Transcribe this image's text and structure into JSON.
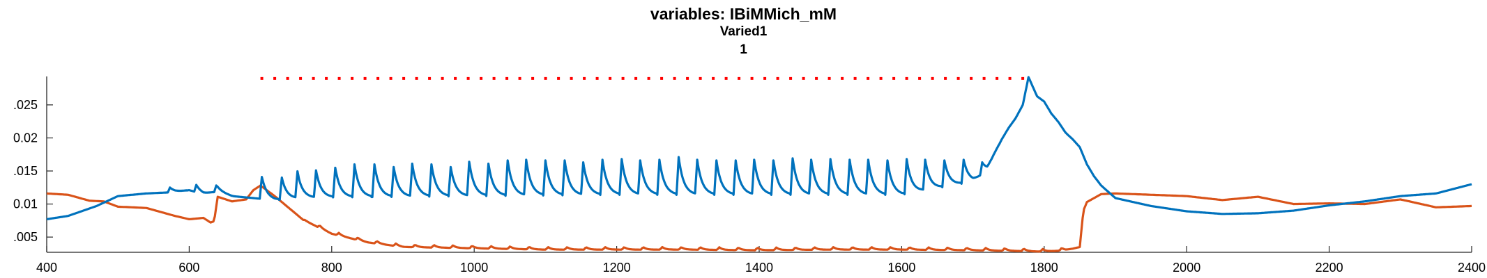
{
  "chart_data": {
    "type": "line",
    "title": "variables: IBiMMich_mM",
    "subtitle": [
      "Varied1",
      "1"
    ],
    "xlabel": "",
    "ylabel": "",
    "xlim": [
      400,
      2400
    ],
    "ylim": [
      0.0027,
      0.0293
    ],
    "xticks": [
      400,
      600,
      800,
      1000,
      1200,
      1400,
      1600,
      1800,
      2000,
      2200,
      2400
    ],
    "yticks": [
      0.005,
      0.01,
      0.015,
      0.02,
      0.025
    ],
    "ytick_labels": [
      ".005",
      "0.01",
      ".015",
      "0.02",
      ".025"
    ],
    "grid": false,
    "legend": "none",
    "series": [
      {
        "color": "#0072BD",
        "x": [
          400,
          430,
          470,
          500,
          540,
          580,
          600,
          620,
          640,
          660,
          680,
          700,
          720,
          760,
          800,
          900,
          1000,
          1100,
          1200,
          1300,
          1400,
          1500,
          1600,
          1700,
          1720,
          1730,
          1740,
          1750,
          1760,
          1770,
          1778,
          1790,
          1800,
          1810,
          1820,
          1830,
          1840,
          1850,
          1860,
          1870,
          1880,
          1900,
          1950,
          2000,
          2050,
          2100,
          2150,
          2200,
          2250,
          2300,
          2350,
          2400
        ],
        "values": [
          0.0077,
          0.0082,
          0.0097,
          0.0112,
          0.0116,
          0.0118,
          0.0121,
          0.0115,
          0.0119,
          0.0112,
          0.011,
          0.0108,
          0.0106,
          0.0109,
          0.011,
          0.0111,
          0.0112,
          0.0113,
          0.0114,
          0.0114,
          0.0114,
          0.0114,
          0.0114,
          0.0134,
          0.015,
          0.0175,
          0.0197,
          0.0215,
          0.023,
          0.025,
          0.0292,
          0.0263,
          0.0255,
          0.0237,
          0.0224,
          0.0208,
          0.0198,
          0.0186,
          0.016,
          0.0142,
          0.0128,
          0.0109,
          0.0097,
          0.0089,
          0.0085,
          0.0086,
          0.009,
          0.0098,
          0.0104,
          0.0112,
          0.0116,
          0.013
        ],
        "peaks": {
          "x": [
            573,
            610,
            638,
            702,
            730,
            752,
            778,
            805,
            832,
            860,
            887,
            913,
            940,
            967,
            993,
            1020,
            1047,
            1073,
            1100,
            1127,
            1153,
            1180,
            1207,
            1233,
            1260,
            1287,
            1313,
            1340,
            1367,
            1393,
            1420,
            1447,
            1473,
            1500,
            1527,
            1553,
            1580,
            1607,
            1633,
            1660,
            1687,
            1713
          ],
          "values": [
            0.0125,
            0.0129,
            0.0128,
            0.0141,
            0.014,
            0.0148,
            0.0151,
            0.0155,
            0.016,
            0.016,
            0.0156,
            0.0161,
            0.016,
            0.0156,
            0.0164,
            0.0161,
            0.0166,
            0.0167,
            0.0166,
            0.0166,
            0.0163,
            0.0167,
            0.0168,
            0.0166,
            0.0167,
            0.0171,
            0.0167,
            0.0166,
            0.0166,
            0.0167,
            0.0166,
            0.0169,
            0.0167,
            0.0168,
            0.0167,
            0.0167,
            0.0166,
            0.0168,
            0.0167,
            0.0166,
            0.0167,
            0.0163
          ]
        }
      },
      {
        "color": "#D95319",
        "x": [
          400,
          430,
          460,
          480,
          500,
          540,
          580,
          600,
          620,
          630,
          635,
          640,
          660,
          680,
          690,
          700,
          720,
          760,
          800,
          850,
          900,
          1000,
          1100,
          1200,
          1300,
          1400,
          1500,
          1600,
          1700,
          1760,
          1800,
          1830,
          1850,
          1855,
          1860,
          1880,
          1900,
          2000,
          2050,
          2100,
          2150,
          2200,
          2250,
          2300,
          2350,
          2400
        ],
        "values": [
          0.0116,
          0.0114,
          0.0105,
          0.0104,
          0.0096,
          0.0094,
          0.0082,
          0.0077,
          0.0079,
          0.0072,
          0.0074,
          0.0111,
          0.0104,
          0.0107,
          0.0121,
          0.0128,
          0.0112,
          0.0076,
          0.0055,
          0.0042,
          0.0035,
          0.0033,
          0.0031,
          0.0031,
          0.0031,
          0.003,
          0.0031,
          0.0031,
          0.003,
          0.0029,
          0.0028,
          0.003,
          0.0035,
          0.009,
          0.0103,
          0.0115,
          0.0116,
          0.0112,
          0.0106,
          0.0111,
          0.01,
          0.0101,
          0.01,
          0.0107,
          0.0095,
          0.0097
        ]
      },
      {
        "color": "#FF0000",
        "style": "dotted",
        "x": [
          700,
          1780
        ],
        "values": [
          0.029,
          0.029
        ]
      }
    ]
  }
}
